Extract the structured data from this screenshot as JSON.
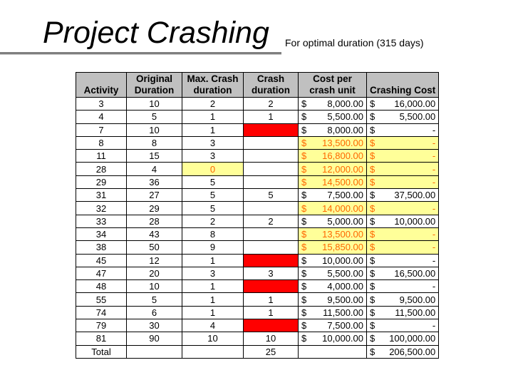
{
  "slide": {
    "title": "Project Crashing",
    "subtitle": "For optimal duration (315 days)"
  },
  "table": {
    "headers": [
      [
        "",
        "Activity"
      ],
      [
        "Original",
        "Duration"
      ],
      [
        "Max. Crash",
        "duration"
      ],
      [
        "Crash",
        "duration"
      ],
      [
        "Cost per",
        "crash unit"
      ],
      [
        "",
        "Crashing Cost"
      ]
    ],
    "rows": [
      {
        "activity": "3",
        "orig": "10",
        "max": "2",
        "crash": "2",
        "crash_hl": "none",
        "max_hl": false,
        "cost": "8,000.00",
        "cost_hl": false,
        "cc": "16,000.00",
        "cc_hl": false
      },
      {
        "activity": "4",
        "orig": "5",
        "max": "1",
        "crash": "1",
        "crash_hl": "none",
        "max_hl": false,
        "cost": "5,500.00",
        "cost_hl": false,
        "cc": "5,500.00",
        "cc_hl": false
      },
      {
        "activity": "7",
        "orig": "10",
        "max": "1",
        "crash": "",
        "crash_hl": "red",
        "max_hl": false,
        "cost": "8,000.00",
        "cost_hl": false,
        "cc": "-",
        "cc_hl": false
      },
      {
        "activity": "8",
        "orig": "8",
        "max": "3",
        "crash": "",
        "crash_hl": "none",
        "max_hl": false,
        "cost": "13,500.00",
        "cost_hl": true,
        "cc": "-",
        "cc_hl": true
      },
      {
        "activity": "11",
        "orig": "15",
        "max": "3",
        "crash": "",
        "crash_hl": "none",
        "max_hl": false,
        "cost": "16,800.00",
        "cost_hl": true,
        "cc": "-",
        "cc_hl": true
      },
      {
        "activity": "28",
        "orig": "4",
        "max": "0",
        "crash": "",
        "crash_hl": "none",
        "max_hl": true,
        "cost": "12,000.00",
        "cost_hl": true,
        "cc": "-",
        "cc_hl": true
      },
      {
        "activity": "29",
        "orig": "36",
        "max": "5",
        "crash": "",
        "crash_hl": "none",
        "max_hl": false,
        "cost": "14,500.00",
        "cost_hl": true,
        "cc": "-",
        "cc_hl": true
      },
      {
        "activity": "31",
        "orig": "27",
        "max": "5",
        "crash": "5",
        "crash_hl": "none",
        "max_hl": false,
        "cost": "7,500.00",
        "cost_hl": false,
        "cc": "37,500.00",
        "cc_hl": false
      },
      {
        "activity": "32",
        "orig": "29",
        "max": "5",
        "crash": "",
        "crash_hl": "none",
        "max_hl": false,
        "cost": "14,000.00",
        "cost_hl": true,
        "cc": "-",
        "cc_hl": true
      },
      {
        "activity": "33",
        "orig": "28",
        "max": "2",
        "crash": "2",
        "crash_hl": "none",
        "max_hl": false,
        "cost": "5,000.00",
        "cost_hl": false,
        "cc": "10,000.00",
        "cc_hl": false
      },
      {
        "activity": "34",
        "orig": "43",
        "max": "8",
        "crash": "",
        "crash_hl": "none",
        "max_hl": false,
        "cost": "13,500.00",
        "cost_hl": true,
        "cc": "-",
        "cc_hl": true
      },
      {
        "activity": "38",
        "orig": "50",
        "max": "9",
        "crash": "",
        "crash_hl": "none",
        "max_hl": false,
        "cost": "15,850.00",
        "cost_hl": true,
        "cc": "-",
        "cc_hl": true
      },
      {
        "activity": "45",
        "orig": "12",
        "max": "1",
        "crash": "",
        "crash_hl": "red",
        "max_hl": false,
        "cost": "10,000.00",
        "cost_hl": false,
        "cc": "-",
        "cc_hl": false
      },
      {
        "activity": "47",
        "orig": "20",
        "max": "3",
        "crash": "3",
        "crash_hl": "none",
        "max_hl": false,
        "cost": "5,500.00",
        "cost_hl": false,
        "cc": "16,500.00",
        "cc_hl": false
      },
      {
        "activity": "48",
        "orig": "10",
        "max": "1",
        "crash": "",
        "crash_hl": "red",
        "max_hl": false,
        "cost": "4,000.00",
        "cost_hl": false,
        "cc": "-",
        "cc_hl": false
      },
      {
        "activity": "55",
        "orig": "5",
        "max": "1",
        "crash": "1",
        "crash_hl": "none",
        "max_hl": false,
        "cost": "9,500.00",
        "cost_hl": false,
        "cc": "9,500.00",
        "cc_hl": false
      },
      {
        "activity": "74",
        "orig": "6",
        "max": "1",
        "crash": "1",
        "crash_hl": "none",
        "max_hl": false,
        "cost": "11,500.00",
        "cost_hl": false,
        "cc": "11,500.00",
        "cc_hl": false
      },
      {
        "activity": "79",
        "orig": "30",
        "max": "4",
        "crash": "",
        "crash_hl": "red",
        "max_hl": false,
        "cost": "7,500.00",
        "cost_hl": false,
        "cc": "-",
        "cc_hl": false
      },
      {
        "activity": "81",
        "orig": "90",
        "max": "10",
        "crash": "10",
        "crash_hl": "none",
        "max_hl": false,
        "cost": "10,000.00",
        "cost_hl": false,
        "cc": "100,000.00",
        "cc_hl": false
      }
    ],
    "total": {
      "label": "Total",
      "crash": "25",
      "cc": "206,500.00"
    },
    "currency_symbol": "$",
    "colors": {
      "header_bg": "#c0c0c0",
      "highlight_yellow": "#ffff99",
      "highlight_red": "#ff0000",
      "highlight_text": "#ff6600"
    }
  }
}
